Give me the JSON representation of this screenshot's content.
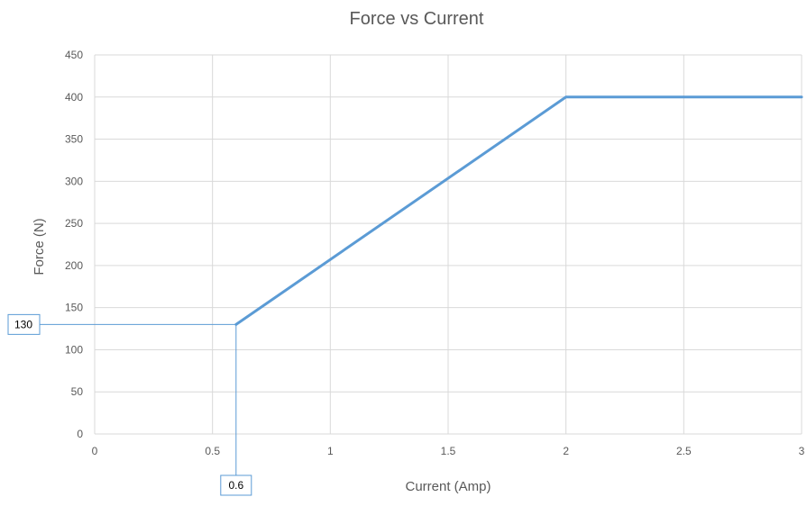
{
  "chart_data": {
    "type": "line",
    "title": "Force vs Current",
    "xlabel": "Current (Amp)",
    "ylabel": "Force (N)",
    "xlim": [
      0,
      3
    ],
    "ylim": [
      0,
      450
    ],
    "xticks": [
      0,
      0.5,
      1,
      1.5,
      2,
      2.5,
      3
    ],
    "yticks": [
      0,
      50,
      100,
      150,
      200,
      250,
      300,
      350,
      400,
      450
    ],
    "xtick_labels": [
      "0",
      "0.5",
      "1",
      "1.5",
      "2",
      "2.5",
      "3"
    ],
    "ytick_labels": [
      "0",
      "50",
      "100",
      "150",
      "200",
      "250",
      "300",
      "350",
      "400",
      "450"
    ],
    "grid": true,
    "series": [
      {
        "x": [
          0.6,
          2,
          3
        ],
        "y": [
          130,
          400,
          400
        ],
        "color": "#5B9BD5"
      }
    ],
    "annotations": [
      {
        "label": "130",
        "axis": "y",
        "value": 130
      },
      {
        "label": "0.6",
        "axis": "x",
        "value": 0.6
      }
    ]
  }
}
